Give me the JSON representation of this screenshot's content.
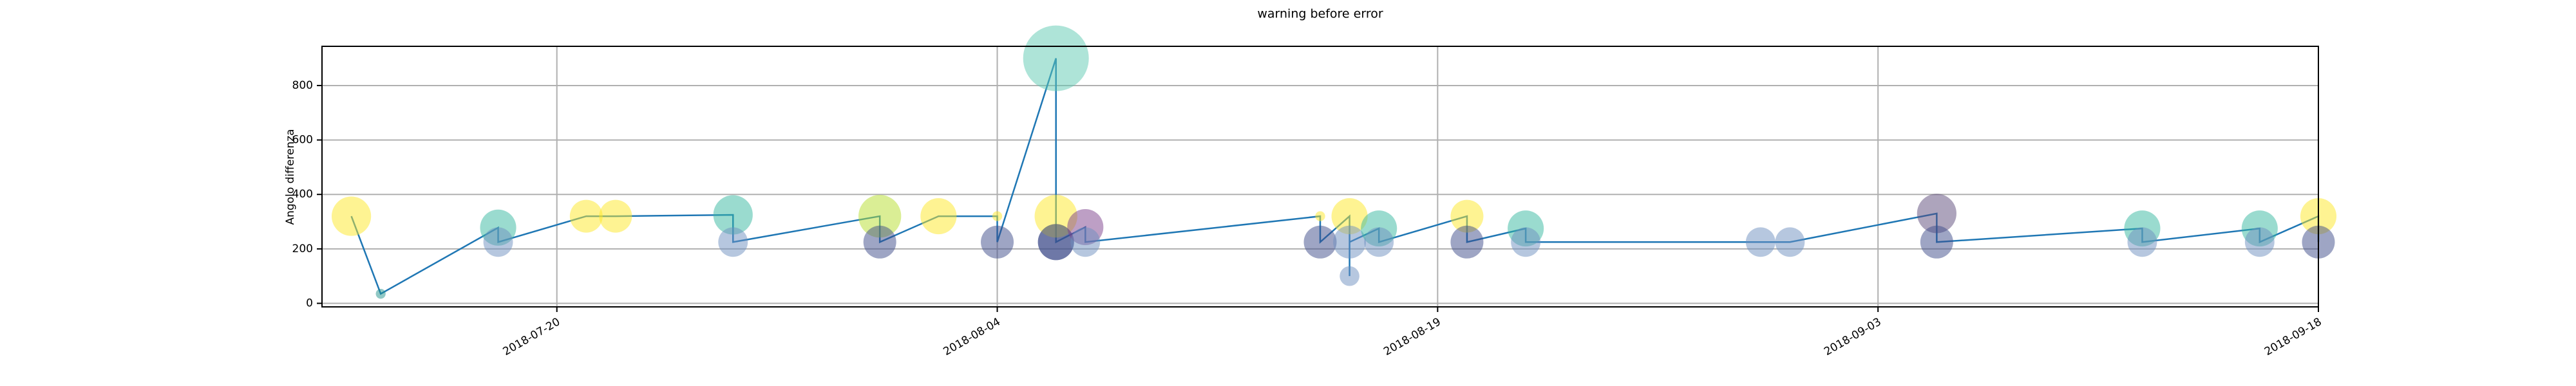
{
  "chart_data": {
    "type": "line-bubble",
    "title": "warning before error",
    "ylabel": "Angolo differenza",
    "x": [
      "2018-07-13",
      "2018-07-14",
      "2018-07-18",
      "2018-07-18",
      "2018-07-21",
      "2018-07-22",
      "2018-07-26",
      "2018-07-26",
      "2018-07-31",
      "2018-07-31",
      "2018-08-02",
      "2018-08-04",
      "2018-08-04",
      "2018-08-06",
      "2018-08-06",
      "2018-08-06",
      "2018-08-06",
      "2018-08-07",
      "2018-08-07",
      "2018-08-15",
      "2018-08-15",
      "2018-08-16",
      "2018-08-16",
      "2018-08-16",
      "2018-08-17",
      "2018-08-17",
      "2018-08-20",
      "2018-08-20",
      "2018-08-22",
      "2018-08-22",
      "2018-08-30",
      "2018-08-31",
      "2018-09-05",
      "2018-09-05",
      "2018-09-12",
      "2018-09-12",
      "2018-09-16",
      "2018-09-16",
      "2018-09-18",
      "2018-09-18"
    ],
    "values": [
      320,
      35,
      278,
      225,
      320,
      320,
      325,
      225,
      320,
      225,
      320,
      320,
      225,
      900,
      225,
      320,
      225,
      280,
      225,
      320,
      225,
      320,
      100,
      225,
      275,
      225,
      320,
      225,
      275,
      225,
      225,
      225,
      330,
      225,
      275,
      225,
      275,
      225,
      320,
      225
    ],
    "sizes": [
      144,
      9,
      121,
      81,
      100,
      100,
      144,
      81,
      169,
      100,
      121,
      9,
      100,
      400,
      121,
      169,
      121,
      121,
      81,
      9,
      100,
      121,
      36,
      100,
      121,
      81,
      100,
      100,
      121,
      81,
      81,
      81,
      144,
      100,
      121,
      81,
      121,
      81,
      121,
      100
    ],
    "colors": [
      "#fde725",
      "#21918c",
      "#35b7a0",
      "#6d8fc0",
      "#fde725",
      "#fde725",
      "#35b7a0",
      "#6d8fc0",
      "#b5de2b",
      "#3e4c8a",
      "#fde725",
      "#fde725",
      "#3e4c8a",
      "#5ec9b2",
      "#3e4c8a",
      "#fde725",
      "#3e4c8a",
      "#7b3f8c",
      "#6d8fc0",
      "#fde725",
      "#3e4c8a",
      "#fde725",
      "#6d8fc0",
      "#6d8fc0",
      "#35b7a0",
      "#6d8fc0",
      "#fde725",
      "#3e4c8a",
      "#35b7a0",
      "#6d8fc0",
      "#6d8fc0",
      "#6d8fc0",
      "#5b4a7a",
      "#3e4c8a",
      "#35b7a0",
      "#6d8fc0",
      "#35b7a0",
      "#6d8fc0",
      "#fde725",
      "#3e4c8a"
    ],
    "alpha": 0.5,
    "line_color": "#1f77b4",
    "xlim": [
      "2018-07-12",
      "2018-09-18"
    ],
    "xticks": [
      "2018-07-20",
      "2018-08-04",
      "2018-08-19",
      "2018-09-03",
      "2018-09-18"
    ],
    "ylim": [
      -13,
      944
    ],
    "yticks": [
      0,
      200,
      400,
      600,
      800
    ],
    "grid": true
  }
}
